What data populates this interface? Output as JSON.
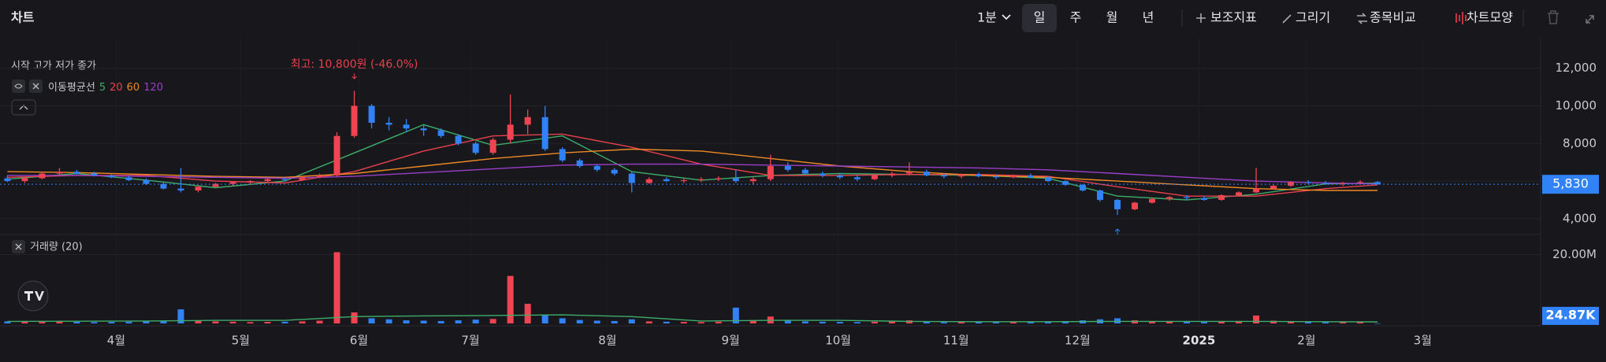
{
  "toolbar": {
    "title": "차트",
    "interval": "1분",
    "periods": [
      "일",
      "주",
      "월",
      "년"
    ],
    "selected_period": 0,
    "tools": [
      "보조지표",
      "그리기",
      "종목비교",
      "차트모양"
    ]
  },
  "chart_data": {
    "type": "candlestick",
    "legend": "시작 고가 저가 종가",
    "annotation": {
      "text": "최고: 10,800원 (-46.0%)",
      "index": 20
    },
    "colors": {
      "up": "#f04452",
      "down": "#3182f6"
    },
    "candles": [
      [
        6150,
        6300,
        5950,
        6000
      ],
      [
        6000,
        6200,
        5900,
        6150
      ],
      [
        6150,
        6500,
        6100,
        6400
      ],
      [
        6400,
        6700,
        6300,
        6500
      ],
      [
        6500,
        6600,
        6350,
        6400
      ],
      [
        6400,
        6500,
        6250,
        6300
      ],
      [
        6300,
        6400,
        6150,
        6200
      ],
      [
        6200,
        6300,
        6000,
        6050
      ],
      [
        6050,
        6150,
        5800,
        5850
      ],
      [
        5850,
        5950,
        5550,
        5600
      ],
      [
        5600,
        6700,
        5400,
        5500
      ],
      [
        5500,
        5750,
        5400,
        5700
      ],
      [
        5700,
        5900,
        5650,
        5850
      ],
      [
        5850,
        6000,
        5750,
        5950
      ],
      [
        5950,
        6050,
        5850,
        6000
      ],
      [
        6000,
        6150,
        5950,
        6100
      ],
      [
        6100,
        6200,
        6000,
        6050
      ],
      [
        6050,
        6250,
        6000,
        6200
      ],
      [
        6200,
        6400,
        6150,
        6300
      ],
      [
        6300,
        8600,
        6250,
        8400
      ],
      [
        8400,
        10800,
        8300,
        10000
      ],
      [
        10000,
        10100,
        8800,
        9100
      ],
      [
        9100,
        9400,
        8700,
        9000
      ],
      [
        9000,
        9300,
        8600,
        8800
      ],
      [
        8800,
        9000,
        8400,
        8700
      ],
      [
        8700,
        8800,
        8300,
        8400
      ],
      [
        8400,
        8500,
        7900,
        8000
      ],
      [
        8000,
        8100,
        7400,
        7500
      ],
      [
        7500,
        8300,
        7400,
        8200
      ],
      [
        8200,
        10600,
        8000,
        9000
      ],
      [
        9000,
        9800,
        8500,
        9400
      ],
      [
        9400,
        10000,
        7600,
        7700
      ],
      [
        7700,
        7800,
        7000,
        7100
      ],
      [
        7100,
        7200,
        6700,
        6800
      ],
      [
        6800,
        6900,
        6500,
        6600
      ],
      [
        6600,
        6700,
        6300,
        6400
      ],
      [
        6400,
        6500,
        5400,
        5900
      ],
      [
        5900,
        6200,
        5850,
        6100
      ],
      [
        6100,
        6200,
        5950,
        6000
      ],
      [
        6000,
        6150,
        5900,
        6050
      ],
      [
        6050,
        6200,
        5950,
        6100
      ],
      [
        6100,
        6250,
        6000,
        6150
      ],
      [
        6150,
        6600,
        5900,
        6000
      ],
      [
        6000,
        6200,
        5800,
        6100
      ],
      [
        6100,
        7400,
        6000,
        6800
      ],
      [
        6800,
        7000,
        6500,
        6600
      ],
      [
        6600,
        6700,
        6350,
        6400
      ],
      [
        6400,
        6500,
        6200,
        6300
      ],
      [
        6300,
        6400,
        6100,
        6200
      ],
      [
        6200,
        6300,
        6000,
        6100
      ],
      [
        6100,
        6350,
        6050,
        6300
      ],
      [
        6300,
        6500,
        6200,
        6400
      ],
      [
        6400,
        7000,
        6300,
        6500
      ],
      [
        6500,
        6600,
        6250,
        6300
      ],
      [
        6300,
        6400,
        6150,
        6250
      ],
      [
        6250,
        6400,
        6150,
        6350
      ],
      [
        6350,
        6450,
        6200,
        6250
      ],
      [
        6250,
        6350,
        6100,
        6200
      ],
      [
        6200,
        6350,
        6150,
        6300
      ],
      [
        6300,
        6400,
        6150,
        6200
      ],
      [
        6200,
        6250,
        5950,
        6000
      ],
      [
        6000,
        6050,
        5750,
        5800
      ],
      [
        5800,
        5850,
        5450,
        5500
      ],
      [
        5500,
        5550,
        4900,
        5000
      ],
      [
        5000,
        5050,
        4200,
        4500
      ],
      [
        4500,
        4900,
        4450,
        4850
      ],
      [
        4850,
        5100,
        4800,
        5050
      ],
      [
        5050,
        5200,
        4950,
        5150
      ],
      [
        5150,
        5250,
        5000,
        5100
      ],
      [
        5100,
        5200,
        4950,
        5000
      ],
      [
        5000,
        5300,
        4950,
        5250
      ],
      [
        5250,
        5450,
        5200,
        5400
      ],
      [
        5400,
        6700,
        5350,
        5600
      ],
      [
        5600,
        5800,
        5550,
        5750
      ],
      [
        5750,
        6000,
        5700,
        5950
      ],
      [
        5950,
        6050,
        5850,
        5900
      ],
      [
        5900,
        6000,
        5800,
        5850
      ],
      [
        5850,
        5950,
        5750,
        5900
      ],
      [
        5900,
        6050,
        5850,
        5950
      ],
      [
        5950,
        6000,
        5800,
        5830
      ]
    ],
    "xlim": [
      -0.2,
      88.4
    ],
    "xticks": [
      {
        "value": 6.27,
        "label": "4월"
      },
      {
        "value": 13.45,
        "label": "5월"
      },
      {
        "value": 20.27,
        "label": "6월"
      },
      {
        "value": 26.7,
        "label": "7월"
      },
      {
        "value": 34.6,
        "label": "8월"
      },
      {
        "value": 41.7,
        "label": "9월"
      },
      {
        "value": 47.9,
        "label": "10월"
      },
      {
        "value": 54.7,
        "label": "11월"
      },
      {
        "value": 61.7,
        "label": "12월"
      },
      {
        "value": 68.7,
        "label": "2025",
        "bold": true
      },
      {
        "value": 74.9,
        "label": "2월"
      },
      {
        "value": 81.6,
        "label": "3월"
      }
    ],
    "ylim": [
      3200,
      12700
    ],
    "yticks": [
      {
        "value": 4000,
        "label": "4,000"
      },
      {
        "value": 6000,
        "label": "6,000"
      },
      {
        "value": 8000,
        "label": "8,000"
      },
      {
        "value": 10000,
        "label": "10,000"
      },
      {
        "value": 12000,
        "label": "12,000"
      }
    ],
    "current_price": {
      "value": 5830,
      "label": "5,830"
    },
    "moving_average": {
      "title": "이동평균선",
      "x": [
        0,
        4,
        8,
        12,
        16,
        20,
        24,
        28,
        32,
        36,
        40,
        44,
        48,
        52,
        56,
        60,
        64,
        68,
        72,
        76,
        79
      ],
      "series": [
        {
          "name": "5",
          "color": "#3fae6a",
          "values": [
            6100,
            6400,
            6050,
            5650,
            6000,
            7500,
            9000,
            7900,
            8400,
            6500,
            6050,
            6300,
            6400,
            6350,
            6300,
            6150,
            5200,
            5000,
            5300,
            5850,
            5890
          ]
        },
        {
          "name": "20",
          "color": "#e8414e",
          "values": [
            6200,
            6300,
            6300,
            6000,
            5900,
            6500,
            7600,
            8400,
            8500,
            7800,
            6900,
            6300,
            6300,
            6350,
            6350,
            6250,
            5700,
            5200,
            5200,
            5600,
            5800
          ]
        },
        {
          "name": "60",
          "color": "#f08a24",
          "values": [
            6500,
            6450,
            6350,
            6250,
            6200,
            6400,
            6800,
            7200,
            7500,
            7700,
            7600,
            7200,
            6800,
            6500,
            6300,
            6200,
            6000,
            5800,
            5600,
            5500,
            5500
          ]
        },
        {
          "name": "120",
          "color": "#9b3fc9",
          "values": [
            6300,
            6300,
            6250,
            6200,
            6150,
            6250,
            6450,
            6650,
            6850,
            6900,
            6900,
            6850,
            6800,
            6750,
            6700,
            6600,
            6400,
            6200,
            6000,
            5900,
            5850
          ]
        }
      ]
    },
    "volume": {
      "title": "거래량 (20)",
      "ylim": [
        0,
        24000000
      ],
      "yticks": [
        {
          "value": 20000000,
          "label": "20.00M"
        }
      ],
      "current": {
        "value": 24870,
        "label": "24.87K"
      },
      "values": [
        600000,
        500000,
        700000,
        800000,
        500000,
        400000,
        450000,
        500000,
        600000,
        700000,
        4100000,
        900000,
        600000,
        500000,
        400000,
        450000,
        500000,
        600000,
        800000,
        20700000,
        3200000,
        1500000,
        1200000,
        900000,
        800000,
        700000,
        900000,
        1100000,
        1300000,
        13800000,
        5700000,
        2500000,
        1500000,
        1000000,
        800000,
        700000,
        1200000,
        600000,
        500000,
        450000,
        400000,
        500000,
        4600000,
        800000,
        2000000,
        900000,
        600000,
        500000,
        450000,
        400000,
        500000,
        600000,
        900000,
        500000,
        400000,
        450000,
        400000,
        350000,
        400000,
        500000,
        600000,
        700000,
        900000,
        1200000,
        1500000,
        900000,
        700000,
        600000,
        500000,
        450000,
        600000,
        700000,
        2300000,
        800000,
        600000,
        500000,
        450000,
        400000,
        350000,
        24870
      ],
      "average": {
        "color": "#3fae6a",
        "x": [
          0,
          4,
          8,
          12,
          16,
          20,
          24,
          28,
          32,
          36,
          40,
          44,
          48,
          52,
          56,
          60,
          64,
          68,
          72,
          76,
          79
        ],
        "values": [
          600000,
          650000,
          700000,
          900000,
          900000,
          2000000,
          2200000,
          2300000,
          2500000,
          2000000,
          700000,
          900000,
          900000,
          600000,
          500000,
          500000,
          600000,
          600000,
          600000,
          500000,
          450000
        ]
      }
    }
  }
}
